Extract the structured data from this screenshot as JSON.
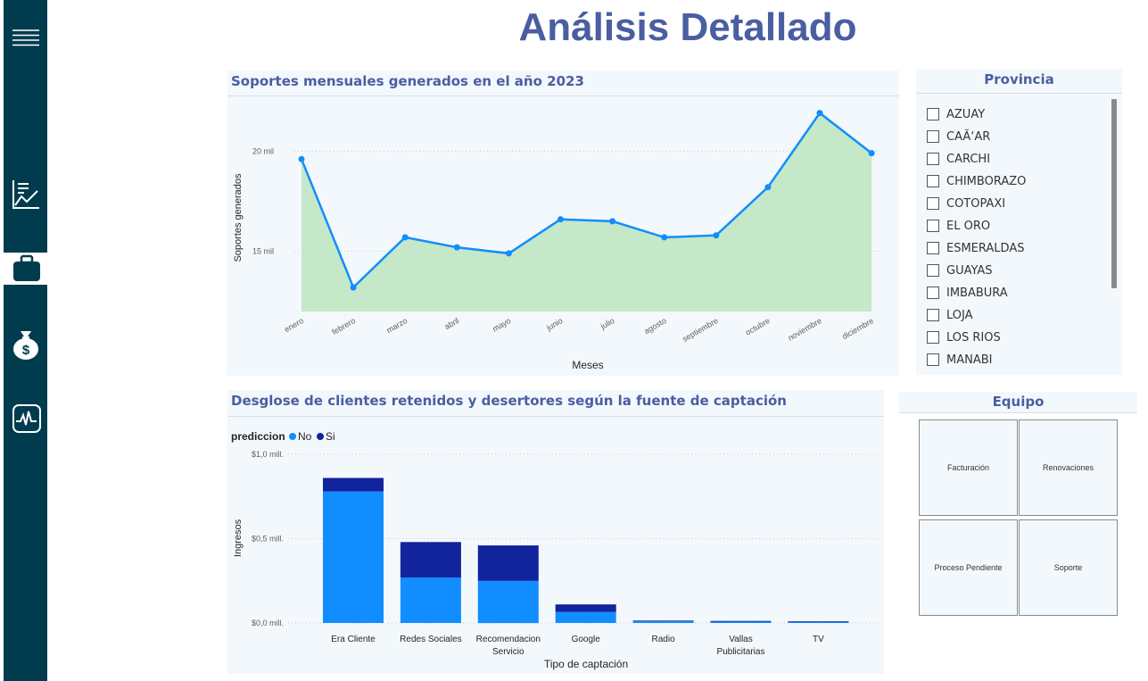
{
  "page_title": "Análisis Detallado",
  "sidebar": {
    "items": [
      {
        "icon": "hamburger-menu-icon"
      },
      {
        "icon": "line-chart-icon"
      },
      {
        "icon": "briefcase-icon",
        "active": true
      },
      {
        "icon": "money-bag-icon"
      },
      {
        "icon": "activity-chart-icon"
      }
    ]
  },
  "line_chart": {
    "title": "Soportes mensuales generados en el año 2023",
    "chart_data": {
      "type": "area",
      "categories": [
        "enero",
        "febrero",
        "marzo",
        "abril",
        "mayo",
        "junio",
        "julio",
        "agosto",
        "septiembre",
        "octubre",
        "noviembre",
        "diciembre"
      ],
      "values": [
        19600,
        13200,
        15700,
        15200,
        14900,
        16600,
        16500,
        15700,
        15800,
        18200,
        21900,
        19900
      ],
      "xlabel": "Meses",
      "ylabel": "Soportes generados",
      "ylim": [
        12000,
        23000
      ],
      "yticks": [
        {
          "value": 15000,
          "label": "15 mil"
        },
        {
          "value": 20000,
          "label": "20 mil"
        }
      ],
      "grid": true,
      "line_color": "#118dff",
      "fill_color": "#c4e8c8"
    }
  },
  "bar_chart": {
    "title": "Desglose de clientes retenidos y desertores según la fuente de captación",
    "legend_title": "prediccion",
    "chart_data": {
      "type": "bar",
      "stacked": true,
      "categories": [
        [
          "Era Cliente"
        ],
        [
          "Redes Sociales"
        ],
        [
          "Recomendacion",
          "Servicio"
        ],
        [
          "Google"
        ],
        [
          "Radio"
        ],
        [
          "Vallas",
          "Publicitarias"
        ],
        [
          "TV"
        ]
      ],
      "series": [
        {
          "name": "No",
          "color": "#118dff",
          "values": [
            0.78,
            0.27,
            0.25,
            0.065,
            0.01,
            0.008,
            0.006
          ]
        },
        {
          "name": "Si",
          "color": "#12239e",
          "values": [
            0.08,
            0.21,
            0.21,
            0.045,
            0.004,
            0.003,
            0.003
          ]
        }
      ],
      "xlabel": "Tipo de captación",
      "ylabel": "Ingresos",
      "ylim": [
        0,
        1.0
      ],
      "yticks": [
        {
          "value": 0,
          "label": "$0,0 mill."
        },
        {
          "value": 0.5,
          "label": "$0,5 mill."
        },
        {
          "value": 1.0,
          "label": "$1,0 mill."
        }
      ],
      "grid": true,
      "legend_position": "top-left"
    }
  },
  "province_slicer": {
    "title": "Provincia",
    "items": [
      "AZUAY",
      "CAÃ‘AR",
      "CARCHI",
      "CHIMBORAZO",
      "COTOPAXI",
      "EL ORO",
      "ESMERALDAS",
      "GUAYAS",
      "IMBABURA",
      "LOJA",
      "LOS RIOS",
      "MANABI"
    ]
  },
  "team_slicer": {
    "title": "Equipo",
    "tiles": [
      "Facturación",
      "Renovaciones",
      "Proceso Pendiente",
      "Soporte"
    ]
  }
}
